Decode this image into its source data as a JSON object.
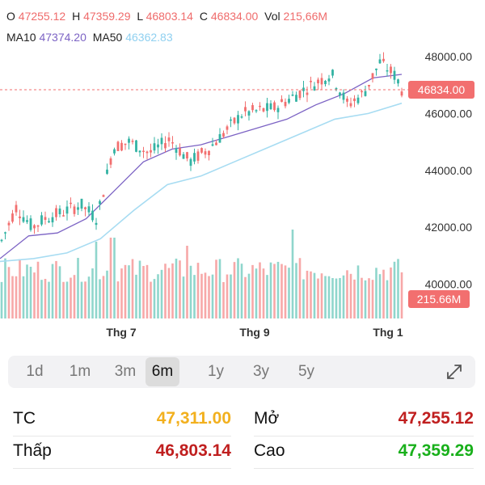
{
  "header": {
    "o_label": "O",
    "o_value": "47255.12",
    "h_label": "H",
    "h_value": "47359.29",
    "l_label": "L",
    "l_value": "46803.14",
    "c_label": "C",
    "c_value": "46834.00",
    "vol_label": "Vol",
    "vol_value": "215,66M",
    "ma10_label": "MA10",
    "ma10_value": "47374.20",
    "ma50_label": "MA50",
    "ma50_value": "46362.83"
  },
  "chart_data": {
    "type": "candlestick",
    "y_ticks": [
      "48000.00",
      "46000.00",
      "44000.00",
      "42000.00",
      "40000.00"
    ],
    "y_tick_values": [
      48000,
      46000,
      44000,
      42000,
      40000
    ],
    "x_ticks": [
      "Thg 7",
      "Thg 9",
      "Thg 1"
    ],
    "last_price": 46834.0,
    "last_price_label": "46834.00",
    "last_volume_label": "215.66M",
    "series": [
      {
        "name": "MA10",
        "values": [
          40900,
          41700,
          41800,
          42300,
          43300,
          44300,
          44750,
          44900,
          45200,
          45500,
          45800,
          46300,
          46700,
          47250,
          47374
        ]
      },
      {
        "name": "MA50",
        "values": [
          40800,
          40900,
          41100,
          41600,
          42600,
          43500,
          43800,
          44300,
          44800,
          45300,
          45800,
          46000,
          46362
        ]
      }
    ],
    "colors": {
      "up": "#33b3a3",
      "down": "#f26f6f",
      "ma10": "#7c63c4",
      "ma50": "#a7dcf2"
    }
  },
  "periods": {
    "items": [
      "1d",
      "1m",
      "3m",
      "6m",
      "1y",
      "3y",
      "5y"
    ],
    "active": "6m"
  },
  "stats": {
    "tc_label": "TC",
    "tc_value": "47,311.00",
    "tc_color": "#f2b01e",
    "open_label": "Mở",
    "open_value": "47,255.12",
    "open_color": "#c01f1f",
    "low_label": "Thấp",
    "low_value": "46,803.14",
    "low_color": "#c01f1f",
    "high_label": "Cao",
    "high_value": "47,359.29",
    "high_color": "#19b01b"
  }
}
